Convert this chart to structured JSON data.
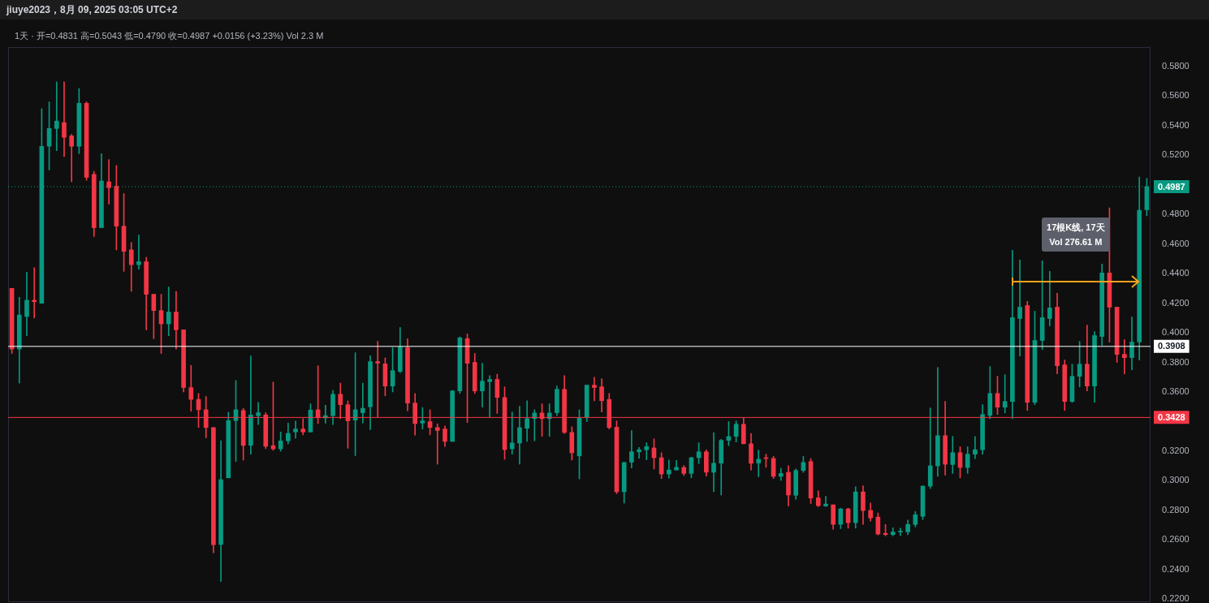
{
  "chart_data": {
    "type": "candlestick",
    "title": "1天 · 开=0.4831 高=0.5043 低=0.4790 收=0.4987 +0.0156 (+3.23%) Vol 2.3 M",
    "annotations": [
      "jiuye2023，8月 09, 2025 03:05 UTC+2",
      "17根K线, 17天",
      "Vol 276.61 M"
    ],
    "categories": [
      null,
      null,
      null,
      null,
      null,
      null,
      null,
      null,
      null,
      null,
      null,
      null,
      null,
      null,
      null,
      null,
      null,
      null,
      null,
      null,
      null,
      null,
      null,
      null,
      null,
      null,
      null,
      null,
      null,
      null,
      null,
      null,
      null,
      null,
      null,
      null,
      null,
      null,
      null,
      null,
      null,
      null,
      null,
      null,
      null,
      null,
      null,
      null,
      null,
      null,
      null,
      null,
      null,
      null,
      null,
      null,
      null,
      null,
      null,
      null,
      null,
      null,
      null,
      null,
      null,
      null,
      null,
      null,
      null,
      null,
      null,
      null,
      null,
      null,
      null,
      null,
      null,
      null,
      null,
      null,
      null,
      null,
      null,
      null,
      null,
      null,
      null,
      null,
      null,
      null,
      null,
      null,
      null,
      null,
      null,
      null,
      null,
      null,
      null,
      null,
      null,
      null,
      null,
      null,
      null,
      null,
      null,
      null,
      null,
      null,
      null,
      null,
      null,
      null,
      null,
      null,
      null,
      null,
      null,
      null,
      null,
      null,
      null,
      null,
      null,
      null,
      null,
      null,
      null,
      null,
      null,
      null,
      null,
      null,
      null,
      null,
      null,
      null,
      null,
      null,
      null,
      null,
      null,
      null,
      null,
      null,
      null,
      null,
      null,
      null,
      null,
      null,
      null
    ],
    "ohlc": [
      [
        0.43,
        0.43,
        0.386,
        0.389
      ],
      [
        0.389,
        0.424,
        0.366,
        0.412
      ],
      [
        0.411,
        0.441,
        0.398,
        0.422
      ],
      [
        0.422,
        0.444,
        0.41,
        0.421
      ],
      [
        0.42,
        0.5514,
        0.42,
        0.526
      ],
      [
        0.526,
        0.556,
        0.51,
        0.538
      ],
      [
        0.538,
        0.5695,
        0.523,
        0.543
      ],
      [
        0.542,
        0.5695,
        0.519,
        0.532
      ],
      [
        0.533,
        0.534,
        0.502,
        0.526
      ],
      [
        0.526,
        0.565,
        0.521,
        0.555
      ],
      [
        0.555,
        0.556,
        0.503,
        0.505
      ],
      [
        0.507,
        0.509,
        0.465,
        0.471
      ],
      [
        0.471,
        0.521,
        0.471,
        0.5025
      ],
      [
        0.502,
        0.517,
        0.487,
        0.498
      ],
      [
        0.499,
        0.513,
        0.456,
        0.472
      ],
      [
        0.472,
        0.494,
        0.4415,
        0.455
      ],
      [
        0.456,
        0.461,
        0.428,
        0.446
      ],
      [
        0.446,
        0.466,
        0.443,
        0.448
      ],
      [
        0.448,
        0.451,
        0.402,
        0.426
      ],
      [
        0.426,
        0.426,
        0.396,
        0.415
      ],
      [
        0.415,
        0.426,
        0.386,
        0.406
      ],
      [
        0.406,
        0.431,
        0.398,
        0.414
      ],
      [
        0.414,
        0.428,
        0.389,
        0.402
      ],
      [
        0.402,
        0.402,
        0.36,
        0.363
      ],
      [
        0.363,
        0.378,
        0.347,
        0.355
      ],
      [
        0.355,
        0.359,
        0.336,
        0.348
      ],
      [
        0.348,
        0.357,
        0.329,
        0.336
      ],
      [
        0.336,
        0.336,
        0.2513,
        0.2568
      ],
      [
        0.257,
        0.327,
        0.232,
        0.3008
      ],
      [
        0.302,
        0.3463,
        0.302,
        0.3407
      ],
      [
        0.3407,
        0.3678,
        0.313,
        0.348
      ],
      [
        0.3475,
        0.349,
        0.314,
        0.3239
      ],
      [
        0.324,
        0.3843,
        0.318,
        0.3445
      ],
      [
        0.344,
        0.353,
        0.338,
        0.346
      ],
      [
        0.3445,
        0.346,
        0.3217,
        0.3233
      ],
      [
        0.3237,
        0.3667,
        0.3206,
        0.3216
      ],
      [
        0.3216,
        0.333,
        0.32,
        0.327
      ],
      [
        0.327,
        0.339,
        0.325,
        0.332
      ],
      [
        0.333,
        0.3403,
        0.3288,
        0.335
      ],
      [
        0.335,
        0.342,
        0.331,
        0.333
      ],
      [
        0.333,
        0.352,
        0.333,
        0.3478
      ],
      [
        0.348,
        0.3777,
        0.3387,
        0.3426
      ],
      [
        0.3425,
        0.351,
        0.339,
        0.344
      ],
      [
        0.344,
        0.361,
        0.338,
        0.3585
      ],
      [
        0.3585,
        0.366,
        0.342,
        0.3514
      ],
      [
        0.3514,
        0.354,
        0.322,
        0.3405
      ],
      [
        0.341,
        0.3865,
        0.317,
        0.348
      ],
      [
        0.346,
        0.366,
        0.339,
        0.349
      ],
      [
        0.35,
        0.3845,
        0.3345,
        0.3805
      ],
      [
        0.3805,
        0.3942,
        0.3431,
        0.3795
      ],
      [
        0.379,
        0.383,
        0.3574,
        0.364
      ],
      [
        0.364,
        0.39,
        0.36,
        0.3744
      ],
      [
        0.3739,
        0.4036,
        0.373,
        0.3904
      ],
      [
        0.39,
        0.396,
        0.3473,
        0.3525
      ],
      [
        0.3525,
        0.359,
        0.3308,
        0.3387
      ],
      [
        0.339,
        0.3495,
        0.335,
        0.3405
      ],
      [
        0.34,
        0.348,
        0.331,
        0.336
      ],
      [
        0.336,
        0.3385,
        0.3112,
        0.334
      ],
      [
        0.335,
        0.337,
        0.3232,
        0.3266
      ],
      [
        0.3266,
        0.361,
        0.3266,
        0.3607
      ],
      [
        0.3607,
        0.3972,
        0.359,
        0.3966
      ],
      [
        0.396,
        0.3992,
        0.3393,
        0.3794
      ],
      [
        0.38,
        0.386,
        0.359,
        0.3607
      ],
      [
        0.3607,
        0.3794,
        0.3497,
        0.3673
      ],
      [
        0.367,
        0.371,
        0.343,
        0.3685
      ],
      [
        0.3685,
        0.372,
        0.3455,
        0.3563
      ],
      [
        0.3563,
        0.3635,
        0.3145,
        0.3211
      ],
      [
        0.3216,
        0.3465,
        0.318,
        0.3256
      ],
      [
        0.3255,
        0.3503,
        0.3112,
        0.3359
      ],
      [
        0.3355,
        0.354,
        0.3266,
        0.342
      ],
      [
        0.342,
        0.348,
        0.327,
        0.3458
      ],
      [
        0.3458,
        0.352,
        0.33,
        0.342
      ],
      [
        0.342,
        0.352,
        0.33,
        0.3458
      ],
      [
        0.346,
        0.364,
        0.344,
        0.3618
      ],
      [
        0.3618,
        0.371,
        0.332,
        0.3327
      ],
      [
        0.3327,
        0.3365,
        0.314,
        0.3189
      ],
      [
        0.3168,
        0.348,
        0.3013,
        0.3424
      ],
      [
        0.3431,
        0.3646,
        0.34,
        0.3646
      ],
      [
        0.3646,
        0.37,
        0.354,
        0.363
      ],
      [
        0.3635,
        0.369,
        0.3465,
        0.3541
      ],
      [
        0.355,
        0.359,
        0.335,
        0.336
      ],
      [
        0.3362,
        0.3405,
        0.2913,
        0.2926
      ],
      [
        0.2926,
        0.3124,
        0.2849,
        0.3124
      ],
      [
        0.3126,
        0.3339,
        0.3087,
        0.3196
      ],
      [
        0.3195,
        0.3225,
        0.3152,
        0.321
      ],
      [
        0.3209,
        0.3257,
        0.3142,
        0.3231
      ],
      [
        0.3222,
        0.3283,
        0.308,
        0.3156
      ],
      [
        0.3156,
        0.319,
        0.3015,
        0.3046
      ],
      [
        0.3046,
        0.3141,
        0.3018,
        0.3073
      ],
      [
        0.3073,
        0.3137,
        0.3073,
        0.3091
      ],
      [
        0.309,
        0.3103,
        0.3035,
        0.305
      ],
      [
        0.305,
        0.316,
        0.302,
        0.3156
      ],
      [
        0.3156,
        0.3257,
        0.3116,
        0.3196
      ],
      [
        0.3196,
        0.3209,
        0.3032,
        0.3058
      ],
      [
        0.3058,
        0.3325,
        0.2926,
        0.3119
      ],
      [
        0.3119,
        0.328,
        0.2904,
        0.3273
      ],
      [
        0.3273,
        0.34,
        0.3237,
        0.3299
      ],
      [
        0.33,
        0.3405,
        0.3262,
        0.3382
      ],
      [
        0.3382,
        0.3427,
        0.325,
        0.325
      ],
      [
        0.325,
        0.332,
        0.3073,
        0.3118
      ],
      [
        0.312,
        0.3207,
        0.3027,
        0.3146
      ],
      [
        0.3156,
        0.318,
        0.3091,
        0.315
      ],
      [
        0.3151,
        0.3165,
        0.3016,
        0.303
      ],
      [
        0.303,
        0.3085,
        0.3003,
        0.305
      ],
      [
        0.3057,
        0.3102,
        0.283,
        0.2904
      ],
      [
        0.2902,
        0.308,
        0.2875,
        0.307
      ],
      [
        0.307,
        0.3166,
        0.3057,
        0.3124
      ],
      [
        0.313,
        0.315,
        0.2846,
        0.2883
      ],
      [
        0.2885,
        0.2933,
        0.2826,
        0.2832
      ],
      [
        0.283,
        0.2895,
        0.2826,
        0.2843
      ],
      [
        0.2838,
        0.2838,
        0.2672,
        0.2706
      ],
      [
        0.2706,
        0.2815,
        0.2677,
        0.281
      ],
      [
        0.281,
        0.2815,
        0.268,
        0.2717
      ],
      [
        0.2717,
        0.296,
        0.268,
        0.2925
      ],
      [
        0.2925,
        0.2966,
        0.2706,
        0.2799
      ],
      [
        0.28,
        0.285,
        0.2728,
        0.2749
      ],
      [
        0.2755,
        0.2783,
        0.2634,
        0.264
      ],
      [
        0.2645,
        0.2705,
        0.2628,
        0.2637
      ],
      [
        0.2637,
        0.2683,
        0.2628,
        0.2654
      ],
      [
        0.2654,
        0.268,
        0.263,
        0.266
      ],
      [
        0.2655,
        0.2735,
        0.2636,
        0.2705
      ],
      [
        0.2705,
        0.2793,
        0.2688,
        0.2771
      ],
      [
        0.276,
        0.2966,
        0.2738,
        0.2964
      ],
      [
        0.2964,
        0.3492,
        0.2948,
        0.3101
      ],
      [
        0.3101,
        0.3766,
        0.303,
        0.3305
      ],
      [
        0.3305,
        0.3537,
        0.3038,
        0.3112
      ],
      [
        0.311,
        0.33,
        0.305,
        0.319
      ],
      [
        0.319,
        0.323,
        0.302,
        0.309
      ],
      [
        0.309,
        0.323,
        0.305,
        0.318
      ],
      [
        0.318,
        0.33,
        0.315,
        0.321
      ],
      [
        0.321,
        0.3514,
        0.318,
        0.3448
      ],
      [
        0.3442,
        0.3772,
        0.342,
        0.359
      ],
      [
        0.359,
        0.3706,
        0.3448,
        0.3497
      ],
      [
        0.3497,
        0.3717,
        0.3459,
        0.3536
      ],
      [
        0.3536,
        0.4558,
        0.342,
        0.4102
      ],
      [
        0.4096,
        0.4492,
        0.3843,
        0.4173
      ],
      [
        0.4184,
        0.4212,
        0.3475,
        0.353
      ],
      [
        0.353,
        0.4146,
        0.3514,
        0.3948
      ],
      [
        0.3948,
        0.4486,
        0.3887,
        0.4102
      ],
      [
        0.4096,
        0.4415,
        0.4047,
        0.4168
      ],
      [
        0.4173,
        0.4267,
        0.3722,
        0.3777
      ],
      [
        0.3783,
        0.3816,
        0.3475,
        0.3536
      ],
      [
        0.3536,
        0.3788,
        0.353,
        0.3706
      ],
      [
        0.3706,
        0.3942,
        0.3634,
        0.3788
      ],
      [
        0.3788,
        0.4052,
        0.3607,
        0.364
      ],
      [
        0.364,
        0.4008,
        0.353,
        0.3981
      ],
      [
        0.3975,
        0.4464,
        0.3915,
        0.4404
      ],
      [
        0.4404,
        0.4844,
        0.3937,
        0.4173
      ],
      [
        0.4173,
        0.4173,
        0.38,
        0.3854
      ],
      [
        0.3854,
        0.3953,
        0.3722,
        0.3832
      ],
      [
        0.3832,
        0.4107,
        0.375,
        0.3937
      ],
      [
        0.3937,
        0.5052,
        0.3816,
        0.4827
      ],
      [
        0.4831,
        0.5043,
        0.479,
        0.4987
      ]
    ],
    "ylim": [
      0.218,
      0.593
    ],
    "yticks": [
      {
        "value": 0.22,
        "label": "0.2200"
      },
      {
        "value": 0.24,
        "label": "0.2400"
      },
      {
        "value": 0.26,
        "label": "0.2600"
      },
      {
        "value": 0.28,
        "label": "0.2800"
      },
      {
        "value": 0.3,
        "label": "0.3000"
      },
      {
        "value": 0.32,
        "label": "0.3200"
      },
      {
        "value": 0.36,
        "label": "0.3600"
      },
      {
        "value": 0.38,
        "label": "0.3800"
      },
      {
        "value": 0.4,
        "label": "0.4000"
      },
      {
        "value": 0.42,
        "label": "0.4200"
      },
      {
        "value": 0.44,
        "label": "0.4400"
      },
      {
        "value": 0.46,
        "label": "0.4600"
      },
      {
        "value": 0.48,
        "label": "0.4800"
      },
      {
        "value": 0.52,
        "label": "0.5200"
      },
      {
        "value": 0.54,
        "label": "0.5400"
      },
      {
        "value": 0.56,
        "label": "0.5600"
      },
      {
        "value": 0.58,
        "label": "0.5800"
      }
    ],
    "ref_lines": [
      {
        "axis": "y",
        "value": 0.4987,
        "label": "0.4987",
        "color": "#089981",
        "line_style": "dotted"
      },
      {
        "axis": "y",
        "value": 0.3908,
        "label": "0.3908",
        "color": "#ffffff",
        "line_style": "solid"
      },
      {
        "axis": "y",
        "value": 0.3428,
        "label": "0.3428",
        "color": "#f23645",
        "line_style": "solid"
      }
    ],
    "grid": false,
    "legend": false,
    "tick_labels": "y"
  }
}
